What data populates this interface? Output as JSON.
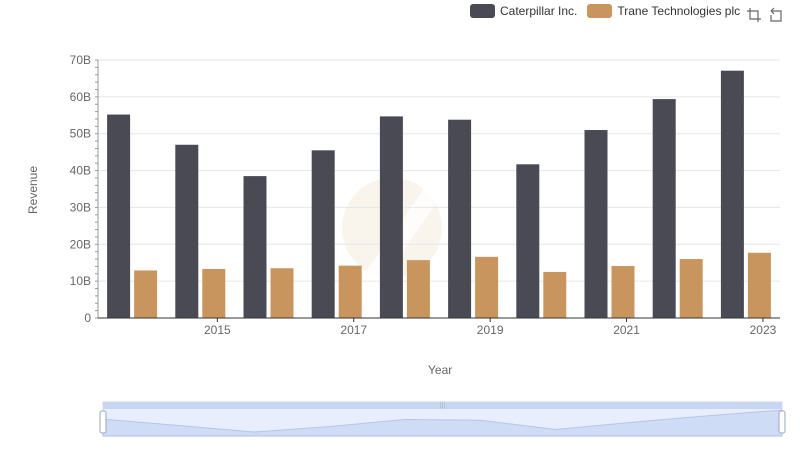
{
  "legend": [
    {
      "name": "Caterpillar Inc.",
      "color": "#4a4a55"
    },
    {
      "name": "Trane Technologies plc",
      "color": "#c9955e"
    }
  ],
  "toolbox": {
    "icons": [
      "zoom-icon",
      "restore-icon"
    ]
  },
  "chart_data": {
    "type": "bar",
    "xlabel": "Year",
    "ylabel": "Revenue",
    "x": [
      2014,
      2015,
      2016,
      2017,
      2018,
      2019,
      2020,
      2021,
      2022,
      2023
    ],
    "x_tick_labels": [
      "2015",
      "2017",
      "2019",
      "2021",
      "2023"
    ],
    "y_tick_labels": [
      "0",
      "10B",
      "20B",
      "30B",
      "40B",
      "50B",
      "60B",
      "70B"
    ],
    "ylim": [
      0,
      70
    ],
    "y_unit": "B",
    "grid": true,
    "legend_position": "top-right",
    "series": [
      {
        "name": "Caterpillar Inc.",
        "color": "#4a4a55",
        "values": [
          55.2,
          47.0,
          38.5,
          45.5,
          54.7,
          53.8,
          41.7,
          51.0,
          59.4,
          67.1
        ]
      },
      {
        "name": "Trane Technologies plc",
        "color": "#c9955e",
        "values": [
          12.9,
          13.3,
          13.5,
          14.2,
          15.7,
          16.6,
          12.5,
          14.1,
          16.0,
          17.7
        ]
      }
    ]
  }
}
